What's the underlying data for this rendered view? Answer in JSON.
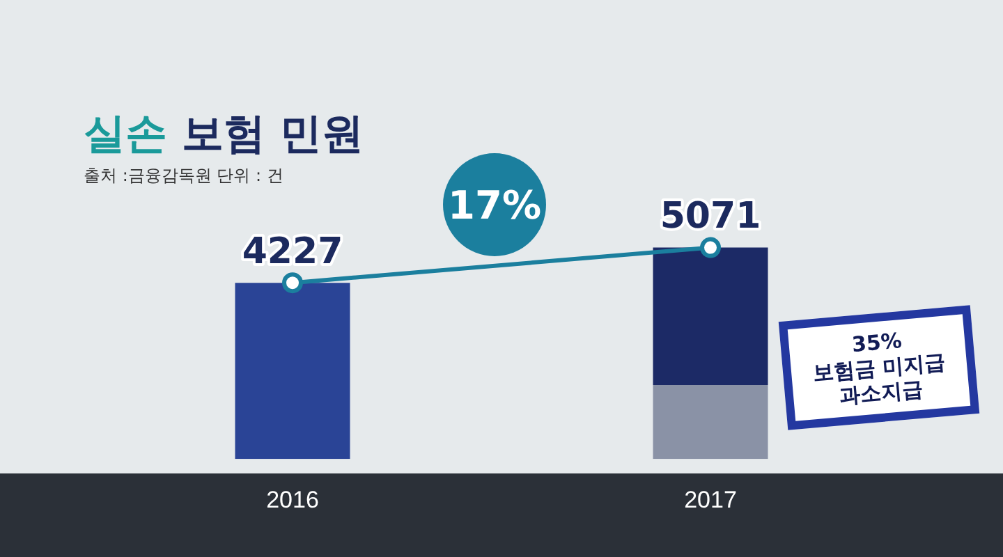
{
  "chart_data": {
    "type": "bar",
    "title": "실손 보험 민원",
    "subtitle": "출처 :금융감독원 단위 : 건",
    "categories": [
      "2016",
      "2017"
    ],
    "stacked": true,
    "tick_labels": "x",
    "grid": false,
    "legend": false,
    "series": [
      {
        "color": "#8a92a6",
        "values": [
          null,
          1775
        ]
      },
      {
        "colors": [
          "#2a4496",
          "#1c2a66"
        ],
        "values": [
          4227,
          3296
        ]
      },
      {
        "type": "line",
        "color": "#1b7f9e",
        "marker": "circle",
        "values": [
          4227,
          5071
        ],
        "value_labels": [
          "4227",
          "5071"
        ]
      }
    ],
    "annotations": [
      "17%",
      "35%\n보험금 미지급\n과소지급"
    ]
  }
}
